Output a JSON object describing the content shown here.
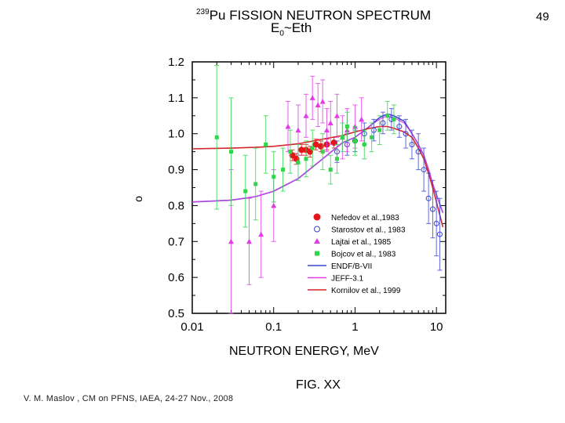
{
  "slide_number": "49",
  "title_sup": "239",
  "title_main": "Pu FISSION NEUTRON SPECTRUM",
  "subtitle_pre": "E",
  "subtitle_sub": "0",
  "subtitle_post": "~Eth",
  "fig_caption": "FIG. XX",
  "footer": "V. M. Maslov ,   CM on PFNS, IAEA, 24-27 Nov., 2008",
  "colors": {
    "red": "#e8131b",
    "blue": "#3b46d1",
    "magenta": "#e33be6",
    "green": "#2fd64a",
    "ktrend": "#d4262b"
  },
  "chart_data": {
    "type": "scatter",
    "title": "239Pu FISSION NEUTRON SPECTRUM",
    "subtitle": "E0~Eth",
    "xlabel": "NEUTRON ENERGY, MeV",
    "ylabel": "o",
    "xscale": "log",
    "xlim": [
      0.01,
      13
    ],
    "ylim": [
      0.5,
      1.2
    ],
    "xticks": [
      "0.01",
      "0.1",
      "1",
      "10"
    ],
    "yticks": [
      "0.5",
      "0.6",
      "0.7",
      "0.8",
      "0.9",
      "1.0",
      "1.1",
      "1.2"
    ],
    "legend_position": "lower-right",
    "grid": false,
    "series": [
      {
        "name": "Nefedov et al.,1983",
        "kind": "points",
        "marker": "circle-filled",
        "color": "#e8131b",
        "x": [
          0.17,
          0.19,
          0.22,
          0.25,
          0.28,
          0.33,
          0.38,
          0.45,
          0.55
        ],
        "y": [
          0.94,
          0.93,
          0.955,
          0.955,
          0.95,
          0.97,
          0.965,
          0.97,
          0.975
        ],
        "err": [
          0.015,
          0.015,
          0.015,
          0.015,
          0.015,
          0.015,
          0.015,
          0.015,
          0.015
        ]
      },
      {
        "name": "Starostov et al., 1983",
        "kind": "points",
        "marker": "circle-open",
        "color": "#3b46d1",
        "x": [
          0.6,
          0.8,
          1.0,
          1.3,
          1.7,
          2.2,
          2.8,
          3.5,
          4.2,
          5.0,
          6.0,
          7.0,
          8.0,
          9.0,
          10.0,
          11.0
        ],
        "y": [
          0.95,
          0.97,
          0.98,
          1.0,
          1.01,
          1.03,
          1.04,
          1.02,
          1.0,
          0.97,
          0.95,
          0.9,
          0.82,
          0.79,
          0.75,
          0.72
        ],
        "err": [
          0.03,
          0.03,
          0.03,
          0.03,
          0.03,
          0.03,
          0.03,
          0.03,
          0.04,
          0.04,
          0.05,
          0.06,
          0.07,
          0.08,
          0.09,
          0.1
        ]
      },
      {
        "name": "Lajtai et al., 1985",
        "kind": "points",
        "marker": "triangle",
        "color": "#e33be6",
        "x": [
          0.03,
          0.05,
          0.07,
          0.1,
          0.15,
          0.2,
          0.25,
          0.3,
          0.35,
          0.4,
          0.45,
          0.5,
          0.6,
          0.7,
          0.8,
          1.0,
          1.2
        ],
        "y": [
          0.7,
          0.7,
          0.72,
          0.8,
          1.02,
          1.01,
          1.05,
          1.1,
          1.08,
          1.09,
          1.01,
          1.03,
          1.05,
          0.99,
          1.01,
          1.02,
          1.04
        ],
        "err": [
          0.2,
          0.12,
          0.12,
          0.1,
          0.07,
          0.07,
          0.06,
          0.06,
          0.06,
          0.06,
          0.06,
          0.06,
          0.06,
          0.06,
          0.06,
          0.06,
          0.06
        ]
      },
      {
        "name": "Bojcov et al., 1983",
        "kind": "points",
        "marker": "square",
        "color": "#2fd64a",
        "x": [
          0.02,
          0.03,
          0.045,
          0.06,
          0.08,
          0.1,
          0.13,
          0.16,
          0.2,
          0.25,
          0.3,
          0.4,
          0.5,
          0.6,
          0.7,
          0.8,
          1.0,
          1.3,
          1.6,
          2.0,
          2.5,
          3.0
        ],
        "y": [
          0.99,
          0.95,
          0.84,
          0.86,
          0.97,
          0.88,
          0.9,
          0.95,
          0.92,
          0.93,
          0.96,
          0.95,
          0.9,
          0.93,
          0.99,
          1.02,
          0.98,
          0.97,
          0.99,
          1.01,
          1.05,
          1.04
        ],
        "err": [
          0.2,
          0.15,
          0.1,
          0.1,
          0.08,
          0.07,
          0.06,
          0.06,
          0.05,
          0.05,
          0.05,
          0.05,
          0.04,
          0.04,
          0.04,
          0.04,
          0.04,
          0.04,
          0.04,
          0.04,
          0.04,
          0.04
        ]
      },
      {
        "name": "ENDF/B-VII",
        "kind": "line",
        "color": "#3b46d1",
        "x": [
          0.01,
          0.03,
          0.06,
          0.1,
          0.2,
          0.4,
          0.7,
          1.0,
          1.5,
          2.0,
          2.5,
          3.0,
          4.0,
          5.0,
          6.0,
          7.0,
          8.0,
          9.0,
          10.0,
          12.0
        ],
        "y": [
          0.81,
          0.815,
          0.825,
          0.84,
          0.875,
          0.93,
          0.975,
          0.99,
          1.02,
          1.045,
          1.055,
          1.05,
          1.035,
          1.0,
          0.97,
          0.94,
          0.9,
          0.86,
          0.83,
          0.78
        ]
      },
      {
        "name": "JEFF-3.1",
        "kind": "line",
        "color": "#e33be6",
        "x": [
          0.01,
          0.03,
          0.06,
          0.1,
          0.2,
          0.4,
          0.7,
          1.0,
          1.5,
          2.0,
          2.5,
          3.0,
          4.0,
          5.0,
          6.0,
          7.0,
          8.0,
          9.0,
          10.0,
          12.0
        ],
        "y": [
          0.81,
          0.815,
          0.825,
          0.84,
          0.875,
          0.93,
          0.975,
          0.99,
          1.02,
          1.04,
          1.05,
          1.045,
          1.03,
          1.0,
          0.97,
          0.94,
          0.9,
          0.86,
          0.83,
          0.78
        ]
      },
      {
        "name": "Kornilov et al., 1999",
        "kind": "line",
        "color": "#d4262b",
        "x": [
          0.01,
          0.03,
          0.06,
          0.1,
          0.2,
          0.4,
          0.7,
          1.0,
          1.5,
          2.0,
          2.5,
          3.0,
          4.0,
          5.0,
          6.0,
          7.0,
          8.0,
          9.0,
          10.0,
          12.0
        ],
        "y": [
          0.958,
          0.96,
          0.962,
          0.965,
          0.972,
          0.985,
          0.995,
          1.005,
          1.015,
          1.02,
          1.02,
          1.015,
          1.005,
          0.99,
          0.96,
          0.93,
          0.89,
          0.85,
          0.81,
          0.74
        ]
      }
    ]
  }
}
